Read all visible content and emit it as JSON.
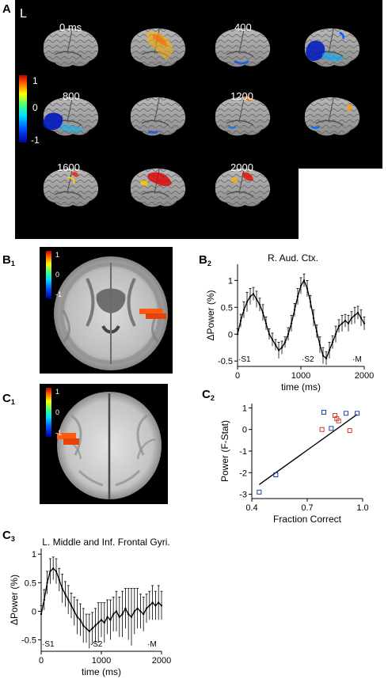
{
  "panel_labels": {
    "A": "A",
    "B1": {
      "main": "B",
      "sub": "1"
    },
    "B2": {
      "main": "B",
      "sub": "2"
    },
    "C1": {
      "main": "C",
      "sub": "1"
    },
    "C2": {
      "main": "C",
      "sub": "2"
    },
    "C3": {
      "main": "C",
      "sub": "3"
    }
  },
  "panel_a": {
    "hemisphere_label": "L",
    "time_labels": [
      "0 ms",
      "400",
      "800",
      "1200",
      "1600",
      "2000"
    ],
    "colorbar_ticks": [
      "1",
      "0",
      "-1"
    ]
  },
  "panel_b1": {
    "colorbar_ticks": [
      "1",
      "0",
      "-1"
    ]
  },
  "panel_c1": {
    "colorbar_ticks": [
      "1",
      "0",
      "-1"
    ]
  },
  "chart_data": [
    {
      "id": "B2",
      "type": "line",
      "title": "R. Aud. Ctx.",
      "xlabel": "time (ms)",
      "ylabel": "ΔPower (%)",
      "xlim": [
        0,
        2000
      ],
      "ylim": [
        -0.6,
        1.3
      ],
      "xticks": [
        "0",
        "1000",
        "2000"
      ],
      "yticks": [
        "-0.5",
        "0",
        "0.5",
        "1"
      ],
      "event_markers": [
        {
          "label": "S1",
          "x": 0
        },
        {
          "label": "S2",
          "x": 1000
        },
        {
          "label": "M",
          "x": 1800
        }
      ],
      "x": [
        0,
        50,
        100,
        150,
        200,
        250,
        300,
        350,
        400,
        450,
        500,
        550,
        600,
        650,
        700,
        750,
        800,
        850,
        900,
        950,
        1000,
        1050,
        1100,
        1150,
        1200,
        1250,
        1300,
        1350,
        1400,
        1450,
        1500,
        1550,
        1600,
        1650,
        1700,
        1750,
        1800,
        1850,
        1900,
        1950,
        2000
      ],
      "values": [
        0.0,
        0.25,
        0.45,
        0.6,
        0.7,
        0.75,
        0.65,
        0.55,
        0.4,
        0.2,
        0.0,
        -0.1,
        -0.2,
        -0.3,
        -0.25,
        -0.15,
        0.0,
        0.2,
        0.45,
        0.7,
        0.9,
        1.0,
        0.85,
        0.6,
        0.3,
        0.05,
        -0.2,
        -0.4,
        -0.45,
        -0.3,
        -0.15,
        0.0,
        0.15,
        0.2,
        0.25,
        0.2,
        0.3,
        0.35,
        0.4,
        0.3,
        0.2
      ],
      "errors": [
        0.1,
        0.12,
        0.15,
        0.18,
        0.15,
        0.12,
        0.15,
        0.12,
        0.15,
        0.12,
        0.1,
        0.12,
        0.1,
        0.15,
        0.12,
        0.1,
        0.12,
        0.15,
        0.12,
        0.15,
        0.15,
        0.12,
        0.15,
        0.12,
        0.15,
        0.12,
        0.15,
        0.15,
        0.12,
        0.15,
        0.12,
        0.15,
        0.12,
        0.15,
        0.12,
        0.15,
        0.12,
        0.15,
        0.12,
        0.15,
        0.12
      ]
    },
    {
      "id": "C2",
      "type": "scatter",
      "title": "",
      "xlabel": "Fraction Correct",
      "ylabel": "Power (F-Stat)",
      "xlim": [
        0.4,
        1.0
      ],
      "ylim": [
        -3.2,
        1.2
      ],
      "xticks": [
        "0.4",
        "0.7",
        "1.0"
      ],
      "yticks": [
        "-3",
        "-2",
        "-1",
        "0",
        "1"
      ],
      "series": [
        {
          "color": "#1f3fa8",
          "x": [
            0.44,
            0.53,
            0.79,
            0.83,
            0.91,
            0.97
          ],
          "y": [
            -2.9,
            -2.1,
            0.8,
            0.05,
            0.75,
            0.75
          ]
        },
        {
          "color": "#d63a2a",
          "x": [
            0.78,
            0.85,
            0.86,
            0.87,
            0.93
          ],
          "y": [
            0.0,
            0.65,
            0.5,
            0.4,
            -0.05
          ]
        }
      ],
      "fit_line": {
        "x": [
          0.44,
          0.97
        ],
        "y": [
          -2.55,
          0.7
        ]
      }
    },
    {
      "id": "C3",
      "type": "line",
      "title": "L. Middle and Inf. Frontal Gyri.",
      "xlabel": "time (ms)",
      "ylabel": "ΔPower (%)",
      "xlim": [
        0,
        2000
      ],
      "ylim": [
        -0.7,
        1.1
      ],
      "xticks": [
        "0",
        "1000",
        "2000"
      ],
      "yticks": [
        "-0.5",
        "0",
        "0.5",
        "1"
      ],
      "event_markers": [
        {
          "label": "S1",
          "x": 0
        },
        {
          "label": "S2",
          "x": 800
        },
        {
          "label": "M",
          "x": 1750
        }
      ],
      "x": [
        0,
        50,
        100,
        150,
        200,
        250,
        300,
        350,
        400,
        450,
        500,
        550,
        600,
        650,
        700,
        750,
        800,
        850,
        900,
        950,
        1000,
        1050,
        1100,
        1150,
        1200,
        1250,
        1300,
        1350,
        1400,
        1450,
        1500,
        1550,
        1600,
        1650,
        1700,
        1750,
        1800,
        1850,
        1900,
        1950,
        2000
      ],
      "values": [
        -0.05,
        0.2,
        0.5,
        0.7,
        0.75,
        0.7,
        0.55,
        0.4,
        0.3,
        0.2,
        0.1,
        0.0,
        -0.1,
        -0.15,
        -0.25,
        -0.3,
        -0.35,
        -0.3,
        -0.25,
        -0.2,
        -0.15,
        -0.2,
        -0.1,
        -0.15,
        -0.05,
        0.0,
        -0.1,
        -0.05,
        0.05,
        -0.05,
        -0.1,
        0.0,
        0.05,
        0.0,
        -0.05,
        0.05,
        0.1,
        0.15,
        0.1,
        0.15,
        0.1
      ],
      "errors": [
        0.15,
        0.18,
        0.2,
        0.22,
        0.2,
        0.22,
        0.2,
        0.25,
        0.22,
        0.25,
        0.22,
        0.25,
        0.3,
        0.28,
        0.3,
        0.25,
        0.3,
        0.28,
        0.3,
        0.35,
        0.3,
        0.35,
        0.3,
        0.35,
        0.3,
        0.35,
        0.35,
        0.4,
        0.35,
        0.45,
        0.5,
        0.4,
        0.35,
        0.3,
        0.3,
        0.25,
        0.25,
        0.3,
        0.25,
        0.3,
        0.25
      ]
    }
  ]
}
